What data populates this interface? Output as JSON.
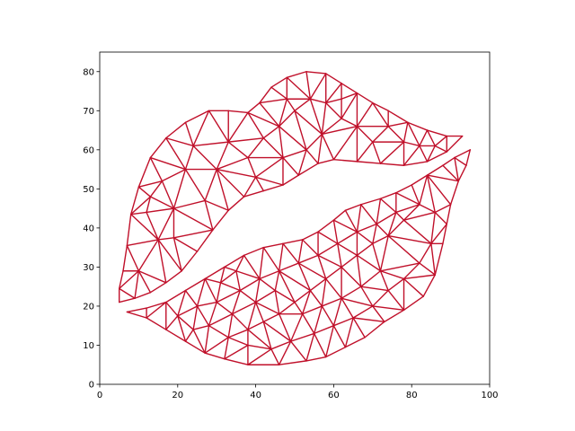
{
  "chart_data": {
    "type": "triangulation",
    "title": "",
    "xlabel": "",
    "ylabel": "",
    "xlim": [
      0,
      100
    ],
    "ylim": [
      0,
      85
    ],
    "xticks": [
      0,
      20,
      40,
      60,
      80,
      100
    ],
    "yticks": [
      0,
      10,
      20,
      30,
      40,
      50,
      60,
      70,
      80
    ],
    "grid": false,
    "edge_color": "#c0102a",
    "upper_lip": {
      "outline": [
        [
          5,
          21
        ],
        [
          9,
          22
        ],
        [
          13,
          23.5
        ],
        [
          17,
          26
        ],
        [
          21,
          29
        ],
        [
          25,
          34
        ],
        [
          29,
          39.5
        ],
        [
          33,
          44.5
        ],
        [
          37,
          48
        ],
        [
          42,
          49.5
        ],
        [
          47,
          51
        ],
        [
          51,
          53.5
        ],
        [
          56,
          56.5
        ],
        [
          60,
          57.5
        ],
        [
          66,
          57
        ],
        [
          72,
          56.5
        ],
        [
          78,
          56
        ],
        [
          84,
          57
        ],
        [
          89,
          59.5
        ],
        [
          93,
          63.5
        ],
        [
          89,
          63.5
        ],
        [
          84,
          65
        ],
        [
          79,
          67
        ],
        [
          74,
          70
        ],
        [
          70,
          72
        ],
        [
          66,
          74.5
        ],
        [
          62,
          77
        ],
        [
          58,
          79.5
        ],
        [
          53,
          80
        ],
        [
          48,
          78.5
        ],
        [
          44,
          76
        ],
        [
          41,
          72
        ],
        [
          38,
          69.5
        ],
        [
          33,
          70
        ],
        [
          28,
          70
        ],
        [
          22,
          67
        ],
        [
          17,
          63
        ],
        [
          13,
          58
        ],
        [
          10,
          50.5
        ],
        [
          8,
          43.5
        ],
        [
          7,
          35.5
        ],
        [
          6,
          29
        ],
        [
          5,
          24.5
        ]
      ],
      "interior": [
        [
          10,
          29
        ],
        [
          15,
          37
        ],
        [
          12,
          44
        ],
        [
          19,
          45
        ],
        [
          16,
          52
        ],
        [
          22,
          55
        ],
        [
          24,
          61
        ],
        [
          30,
          55
        ],
        [
          33,
          62
        ],
        [
          38,
          58
        ],
        [
          42,
          63
        ],
        [
          46,
          66
        ],
        [
          50,
          70
        ],
        [
          54,
          73
        ],
        [
          58,
          72
        ],
        [
          62,
          68
        ],
        [
          66,
          66
        ],
        [
          70,
          62
        ],
        [
          74,
          66
        ],
        [
          78,
          62
        ],
        [
          82,
          61
        ],
        [
          86,
          61
        ],
        [
          53,
          60
        ],
        [
          57,
          64
        ],
        [
          47,
          58
        ],
        [
          40,
          53
        ],
        [
          27,
          47
        ],
        [
          19,
          37.5
        ],
        [
          13,
          48
        ],
        [
          48,
          73
        ],
        [
          62,
          73
        ]
      ]
    },
    "lower_lip": {
      "outline": [
        [
          7,
          18.5
        ],
        [
          12,
          19.5
        ],
        [
          17,
          21
        ],
        [
          22,
          24
        ],
        [
          27,
          27
        ],
        [
          32,
          30
        ],
        [
          37,
          33
        ],
        [
          42,
          35
        ],
        [
          47,
          36
        ],
        [
          52,
          37
        ],
        [
          56,
          39
        ],
        [
          60,
          42
        ],
        [
          63,
          44.5
        ],
        [
          67,
          46
        ],
        [
          72,
          47.5
        ],
        [
          76,
          49
        ],
        [
          80,
          51
        ],
        [
          84,
          53.5
        ],
        [
          88,
          56
        ],
        [
          91,
          58
        ],
        [
          95,
          60
        ],
        [
          94,
          56
        ],
        [
          92,
          52
        ],
        [
          90,
          46
        ],
        [
          89,
          41
        ],
        [
          88,
          36
        ],
        [
          86,
          28
        ],
        [
          83,
          22.5
        ],
        [
          78,
          19
        ],
        [
          73,
          16
        ],
        [
          68,
          12
        ],
        [
          63,
          9.5
        ],
        [
          58,
          7
        ],
        [
          53,
          6
        ],
        [
          46,
          5
        ],
        [
          38,
          5
        ],
        [
          32,
          6.5
        ],
        [
          27,
          8
        ],
        [
          22,
          11
        ],
        [
          17,
          14
        ],
        [
          12,
          17
        ]
      ]
    },
    "lower_interior": [
      [
        15,
        15
      ],
      [
        20,
        17.5
      ],
      [
        25,
        20
      ],
      [
        28,
        15
      ],
      [
        33,
        12
      ],
      [
        38,
        10
      ],
      [
        44,
        9
      ],
      [
        49,
        11
      ],
      [
        55,
        13
      ],
      [
        60,
        15
      ],
      [
        65,
        17
      ],
      [
        70,
        20
      ],
      [
        74,
        24
      ],
      [
        78,
        27
      ],
      [
        82,
        31
      ],
      [
        85,
        36
      ],
      [
        86,
        44
      ],
      [
        82,
        46
      ],
      [
        78,
        42
      ],
      [
        74,
        38
      ],
      [
        70,
        36
      ],
      [
        66,
        33
      ],
      [
        62,
        30
      ],
      [
        58,
        27
      ],
      [
        54,
        24
      ],
      [
        50,
        21
      ],
      [
        46,
        18
      ],
      [
        42,
        16
      ],
      [
        38,
        14
      ],
      [
        34,
        18
      ],
      [
        30,
        21
      ],
      [
        36,
        24
      ],
      [
        41,
        27
      ],
      [
        46,
        29
      ],
      [
        51,
        31
      ],
      [
        56,
        33
      ],
      [
        61,
        36
      ],
      [
        66,
        39
      ],
      [
        71,
        41
      ],
      [
        76,
        44
      ],
      [
        40,
        21
      ],
      [
        45,
        24
      ],
      [
        52,
        18
      ],
      [
        57,
        20
      ],
      [
        62,
        22
      ],
      [
        67,
        25
      ],
      [
        72,
        29
      ],
      [
        24,
        14
      ],
      [
        31,
        26
      ],
      [
        35,
        29
      ]
    ]
  }
}
